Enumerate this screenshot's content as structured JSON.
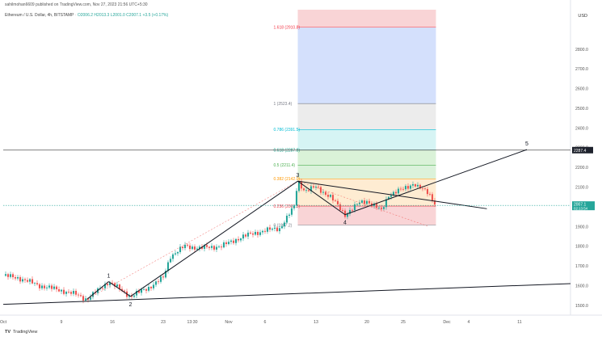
{
  "header": {
    "byline": "sahilmohan6609 published on TradingView.com, Nov 27, 2023 21:56 UTC+5:30"
  },
  "symbol_bar": {
    "title": "Ethereum / U.S. Dollar, 4h, BITSTAMP",
    "ohlc": "O2006.2  H2013.3  L2001.0  C2007.1  +3.5 (+0.17%)"
  },
  "currency_label": "USD",
  "logo_text": "TradingView",
  "chart_data": {
    "type": "candlestick",
    "title": "Ethereum / U.S. Dollar, 4h, BITSTAMP",
    "ylim": [
      1450,
      3000
    ],
    "y_ticks": [
      1500,
      1600,
      1700,
      1800,
      1900,
      2000,
      2100,
      2200,
      2300,
      2400,
      2500,
      2600,
      2700,
      2800
    ],
    "x_ticks": [
      {
        "label": "Oct",
        "day": 0
      },
      {
        "label": "9",
        "day": 8
      },
      {
        "label": "16",
        "day": 15
      },
      {
        "label": "23",
        "day": 22
      },
      {
        "label": "13:30",
        "day": 26
      },
      {
        "label": "Nov",
        "day": 31
      },
      {
        "label": "6",
        "day": 36
      },
      {
        "label": "13",
        "day": 43
      },
      {
        "label": "20",
        "day": 50
      },
      {
        "label": "25",
        "day": 55
      },
      {
        "label": "Dec",
        "day": 61
      },
      {
        "label": "4",
        "day": 64
      },
      {
        "label": "11",
        "day": 71
      }
    ],
    "x_range_days": [
      0,
      78
    ],
    "price_anchors": [
      [
        0,
        1650
      ],
      [
        2,
        1640
      ],
      [
        5,
        1600
      ],
      [
        8,
        1575
      ],
      [
        10,
        1555
      ],
      [
        11.5,
        1530
      ],
      [
        14.5,
        1620
      ],
      [
        17.5,
        1545
      ],
      [
        20,
        1590
      ],
      [
        22,
        1640
      ],
      [
        23,
        1750
      ],
      [
        25,
        1800
      ],
      [
        27,
        1790
      ],
      [
        30,
        1800
      ],
      [
        33,
        1850
      ],
      [
        36,
        1880
      ],
      [
        38,
        1890
      ],
      [
        40,
        2000
      ],
      [
        40.5,
        2130
      ],
      [
        41.5,
        2080
      ],
      [
        43,
        2100
      ],
      [
        45,
        2050
      ],
      [
        47,
        1960
      ],
      [
        49,
        2020
      ],
      [
        50,
        2030
      ],
      [
        52,
        1980
      ],
      [
        53,
        2060
      ],
      [
        55,
        2090
      ],
      [
        56.5,
        2120
      ],
      [
        57,
        2100
      ],
      [
        58.5,
        2070
      ],
      [
        59.5,
        2010
      ]
    ],
    "current_price": {
      "value": 2007.1,
      "countdown": "02:13:54"
    },
    "horizontal_level": {
      "value": 2287.4
    },
    "fib_retracement": {
      "day_start": 40.5,
      "day_end": 59.5,
      "levels": [
        {
          "ratio": 0,
          "label": "0 (1907.2)",
          "price": 1907.2
        },
        {
          "ratio": 0.236,
          "label": "0.236 (2003.3)",
          "price": 2003.3
        },
        {
          "ratio": 0.382,
          "label": "0.382 (2142.0)",
          "price": 2142.0
        },
        {
          "ratio": 0.5,
          "label": "0.5 (2211.4)",
          "price": 2211.4
        },
        {
          "ratio": 0.618,
          "label": "0.618 (2287.8)",
          "price": 2287.8
        },
        {
          "ratio": 0.786,
          "label": "0.786 (2391.5)",
          "price": 2391.5
        },
        {
          "ratio": 1,
          "label": "1 (2523.4)",
          "price": 2523.4
        },
        {
          "ratio": 1.618,
          "label": "1.618 (2910.8)",
          "price": 2910.8
        }
      ]
    },
    "wave_labels": [
      {
        "label": "1",
        "day": 14.5,
        "price": 1620
      },
      {
        "label": "2",
        "day": 17.5,
        "price": 1545
      },
      {
        "label": "3",
        "day": 40.5,
        "price": 2130
      },
      {
        "label": "4",
        "day": 47,
        "price": 1960
      },
      {
        "label": "5",
        "day": 72,
        "price": 2290
      }
    ],
    "trendlines": [
      {
        "name": "long-term-support",
        "from": [
          0,
          1505
        ],
        "to": [
          78,
          1610
        ]
      },
      {
        "name": "descending-resistance",
        "from": [
          40.5,
          2130
        ],
        "to": [
          66.5,
          1990
        ]
      },
      {
        "name": "wave-0-1",
        "from": [
          11.5,
          1530
        ],
        "to": [
          14.5,
          1620
        ]
      },
      {
        "name": "wave-1-2",
        "from": [
          14.5,
          1620
        ],
        "to": [
          17.5,
          1545
        ]
      },
      {
        "name": "wave-2-3",
        "from": [
          17.5,
          1545
        ],
        "to": [
          40.5,
          2130
        ]
      },
      {
        "name": "wave-3-4",
        "from": [
          40.5,
          2130
        ],
        "to": [
          47,
          1960
        ]
      },
      {
        "name": "wave-4-5",
        "from": [
          47,
          1960
        ],
        "to": [
          72,
          2290
        ]
      }
    ],
    "dashed_lines": [
      {
        "name": "wave-channel-dashed",
        "from": [
          11.5,
          1530
        ],
        "to": [
          40.5,
          2130
        ]
      },
      {
        "name": "fib-diagonal-dashed",
        "from": [
          40.5,
          2130
        ],
        "to": [
          58.5,
          1900
        ]
      }
    ]
  }
}
